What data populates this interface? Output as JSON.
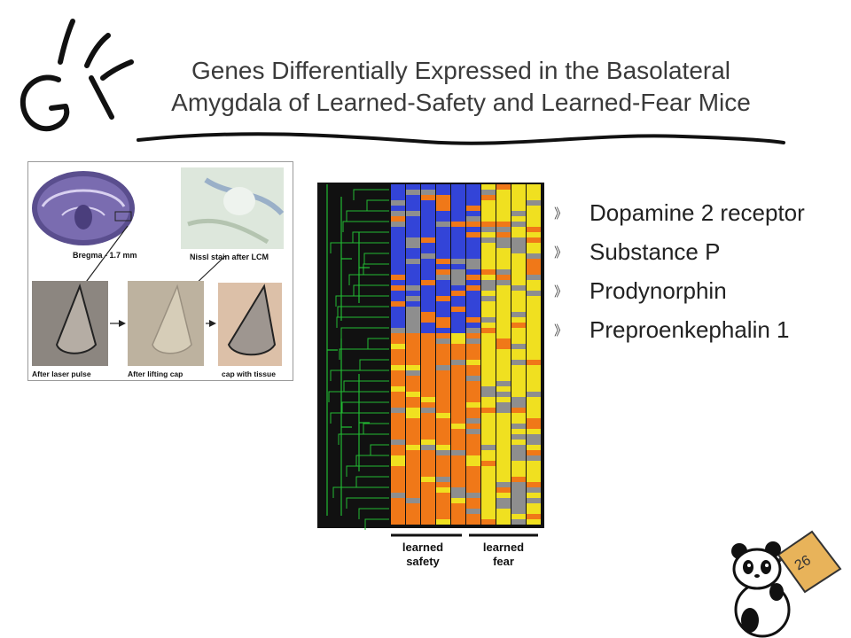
{
  "slide": {
    "title_line1": "Genes Differentially Expressed in the Basolateral",
    "title_line2": "Amygdala of Learned-Safety and Learned-Fear Mice",
    "page_number": "26"
  },
  "figure_panel": {
    "label_bregma": "Bregma - 1.7 mm",
    "label_nissl": "Nissl stain after LCM",
    "label_after_pulse": "After laser pulse",
    "label_after_lifting": "After lifting cap",
    "label_cap_tissue": "cap with tissue"
  },
  "heatmap": {
    "group1_line1": "learned",
    "group1_line2": "safety",
    "group2_line1": "learned",
    "group2_line2": "fear",
    "colors": {
      "background": "#111111",
      "dendrogram": "#22bb33",
      "blue": "#3344d8",
      "orange": "#f07818",
      "yellow": "#f0e020",
      "gray": "#8e8e8e"
    }
  },
  "bullets": {
    "marker": "》",
    "items": [
      "Dopamine 2 receptor",
      "Substance P",
      "Prodynorphin",
      "Preproenkephalin 1"
    ]
  },
  "decor": {
    "logo_icon": "gi-hand-drawn-logo-icon",
    "mascot_icon": "panda-holding-sign-icon"
  }
}
